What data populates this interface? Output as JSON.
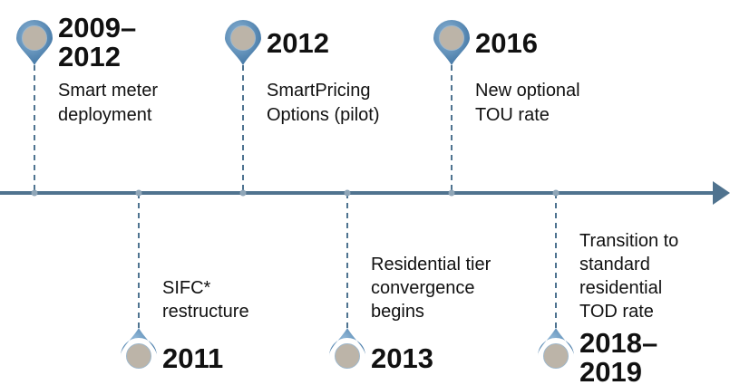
{
  "timeline": {
    "events": [
      {
        "position": "top",
        "year_lines": [
          "2009–",
          "2012"
        ],
        "label_lines": [
          "Smart meter",
          "deployment"
        ]
      },
      {
        "position": "bottom",
        "year_lines": [
          "2011"
        ],
        "label_lines": [
          "SIFC*",
          "restructure"
        ]
      },
      {
        "position": "top",
        "year_lines": [
          "2012"
        ],
        "label_lines": [
          "SmartPricing",
          "Options (pilot)"
        ]
      },
      {
        "position": "bottom",
        "year_lines": [
          "2013"
        ],
        "label_lines": [
          "Residential tier",
          "convergence",
          "begins"
        ]
      },
      {
        "position": "top",
        "year_lines": [
          "2016"
        ],
        "label_lines": [
          "New optional",
          "TOU rate"
        ]
      },
      {
        "position": "bottom",
        "year_lines": [
          "2018–",
          "2019"
        ],
        "label_lines": [
          "Transition to",
          "standard",
          "residential",
          "TOD rate"
        ]
      }
    ]
  }
}
